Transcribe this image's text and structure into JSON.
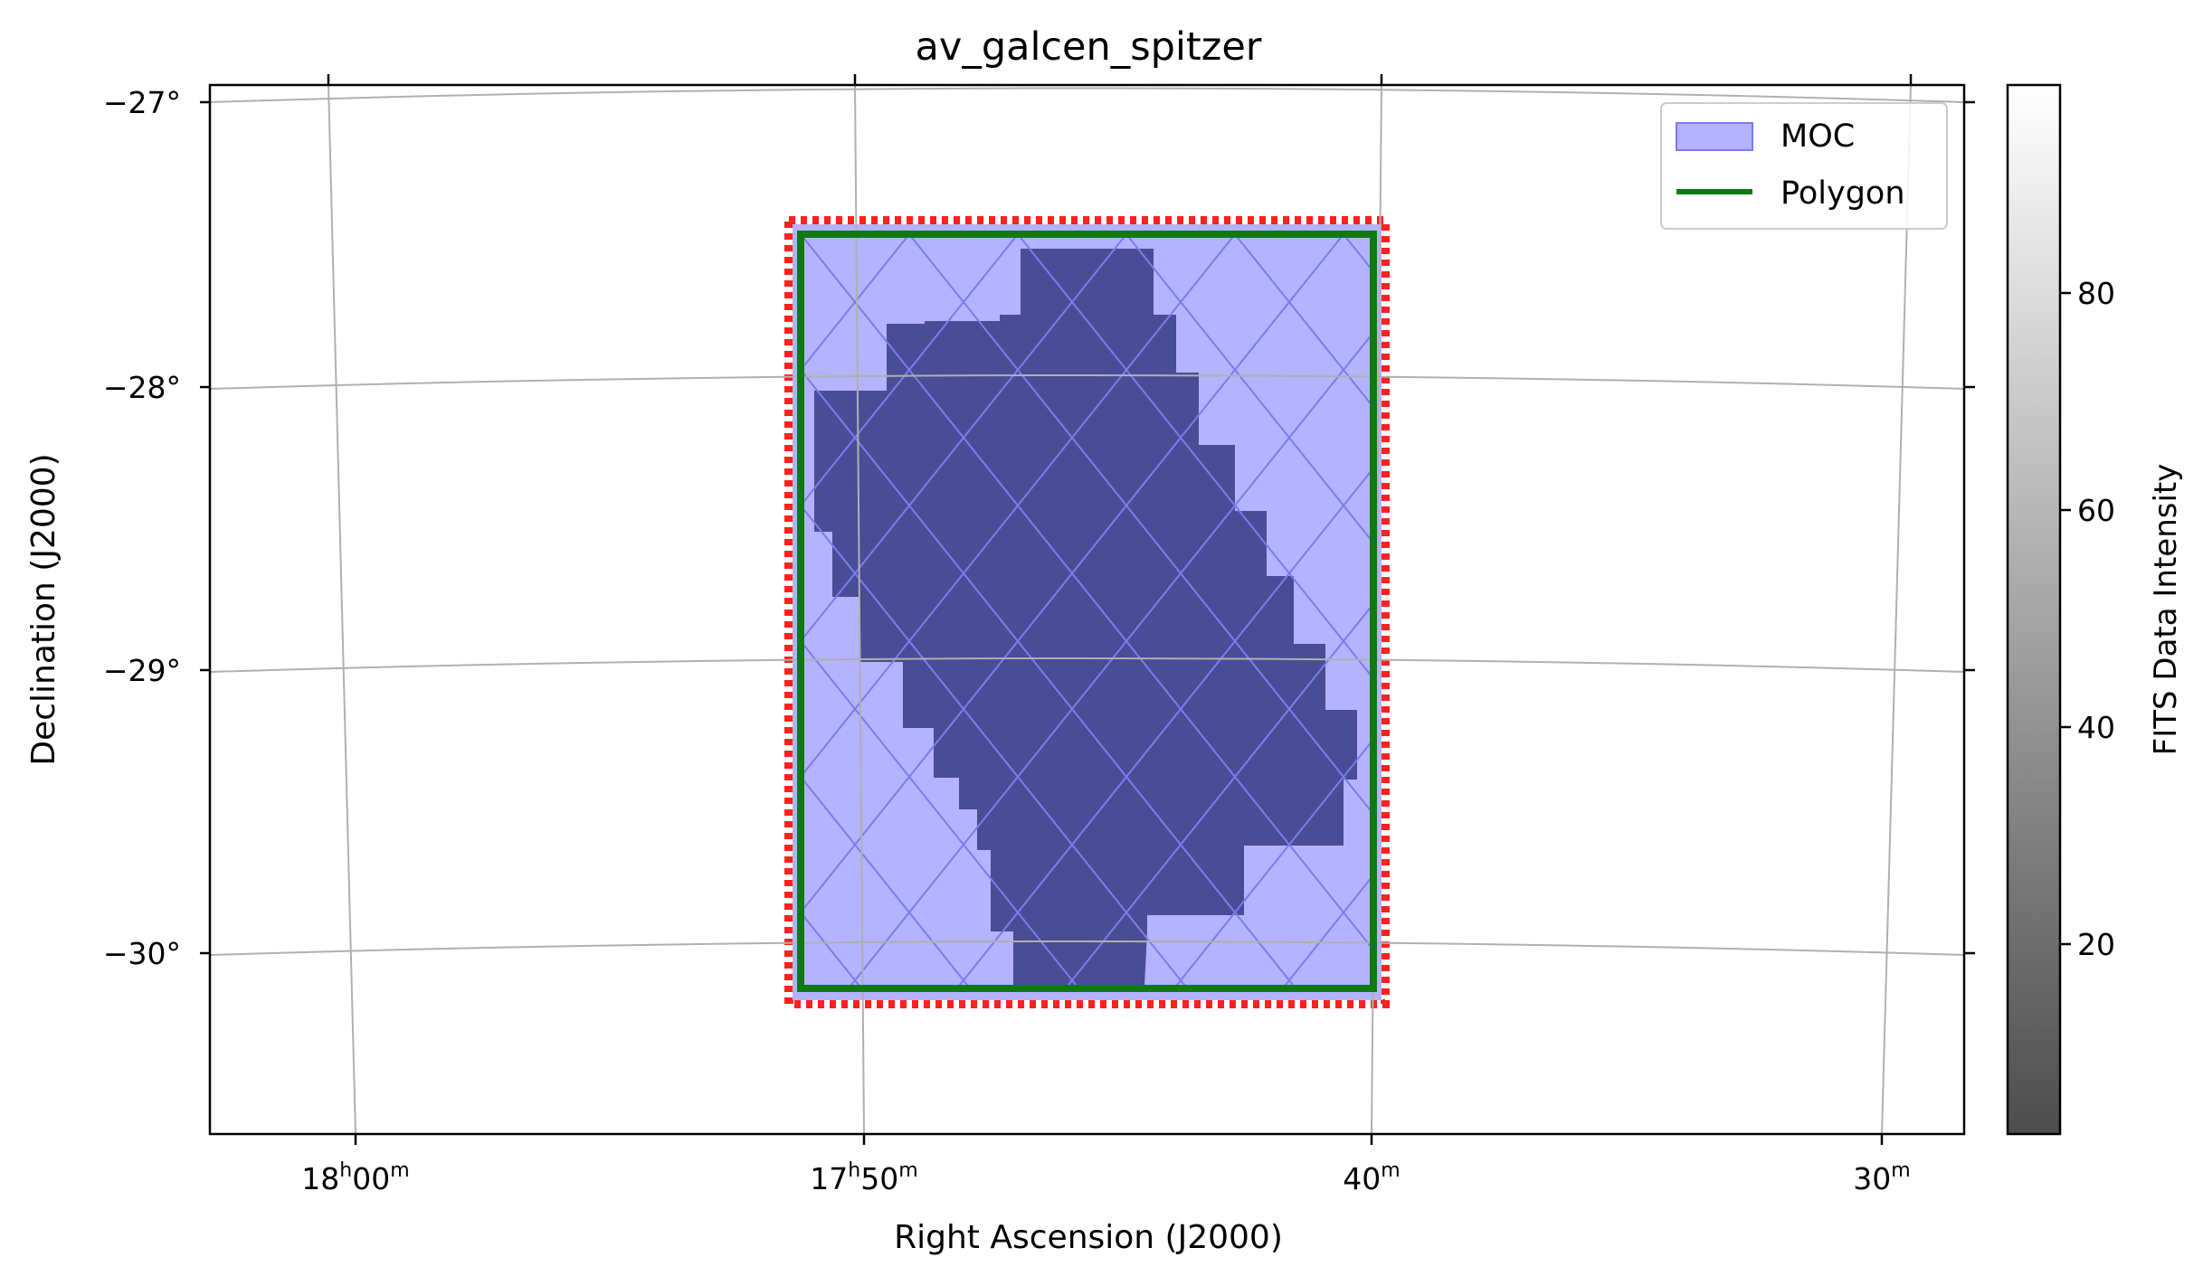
{
  "chart_data": {
    "type": "image",
    "title": "av_galcen_spitzer",
    "xlabel": "Right Ascension (J2000)",
    "ylabel": "Declination (J2000)",
    "x_axis": {
      "unit": "hours/minutes of RA",
      "range_minutes_of_RA_label": [
        "18h02m",
        "17h28m"
      ],
      "ticks": [
        {
          "value": "18h00m",
          "label_main": "18",
          "label_sup1": "h",
          "label_mid": "00",
          "label_sup2": "m"
        },
        {
          "value": "17h50m",
          "label_main": "17",
          "label_sup1": "h",
          "label_mid": "50",
          "label_sup2": "m"
        },
        {
          "value": "17h40m",
          "label_main": "40",
          "label_sup1": "m",
          "label_mid": "",
          "label_sup2": ""
        },
        {
          "value": "17h30m",
          "label_main": "30",
          "label_sup1": "m",
          "label_mid": "",
          "label_sup2": ""
        }
      ]
    },
    "y_axis": {
      "unit": "degrees",
      "ylim": [
        -30.65,
        -26.95
      ],
      "ticks": [
        {
          "value": -27,
          "label": "−27°"
        },
        {
          "value": -28,
          "label": "−28°"
        },
        {
          "value": -29,
          "label": "−29°"
        },
        {
          "value": -30,
          "label": "−30°"
        }
      ]
    },
    "grid": true,
    "legend": {
      "placement": "top-right",
      "entries": [
        {
          "label": "MOC",
          "type": "patch",
          "face": "#b3b3ff",
          "edge": "#7b7bf0"
        },
        {
          "label": "Polygon",
          "type": "line",
          "color": "#107a10"
        }
      ]
    },
    "colorbar": {
      "label": "FITS Data Intensity",
      "range": [
        2,
        99
      ],
      "ticks": [
        {
          "value": 20,
          "label": "20"
        },
        {
          "value": 40,
          "label": "40"
        },
        {
          "value": 60,
          "label": "60"
        },
        {
          "value": 80,
          "label": "80"
        }
      ],
      "cmap": "gray (alpha 0.7)"
    },
    "overlays": {
      "moc_region": {
        "ra_range": "≈17h51m–17h40m",
        "dec_range_deg": [
          -30.15,
          -27.45
        ],
        "face": "#b3b3ff"
      },
      "polygon": {
        "dec_range_deg": [
          -30.12,
          -27.47
        ],
        "color": "#107a10"
      },
      "moc_border_color": "#ff0000",
      "fits_image_color": "#4a4c95"
    }
  }
}
